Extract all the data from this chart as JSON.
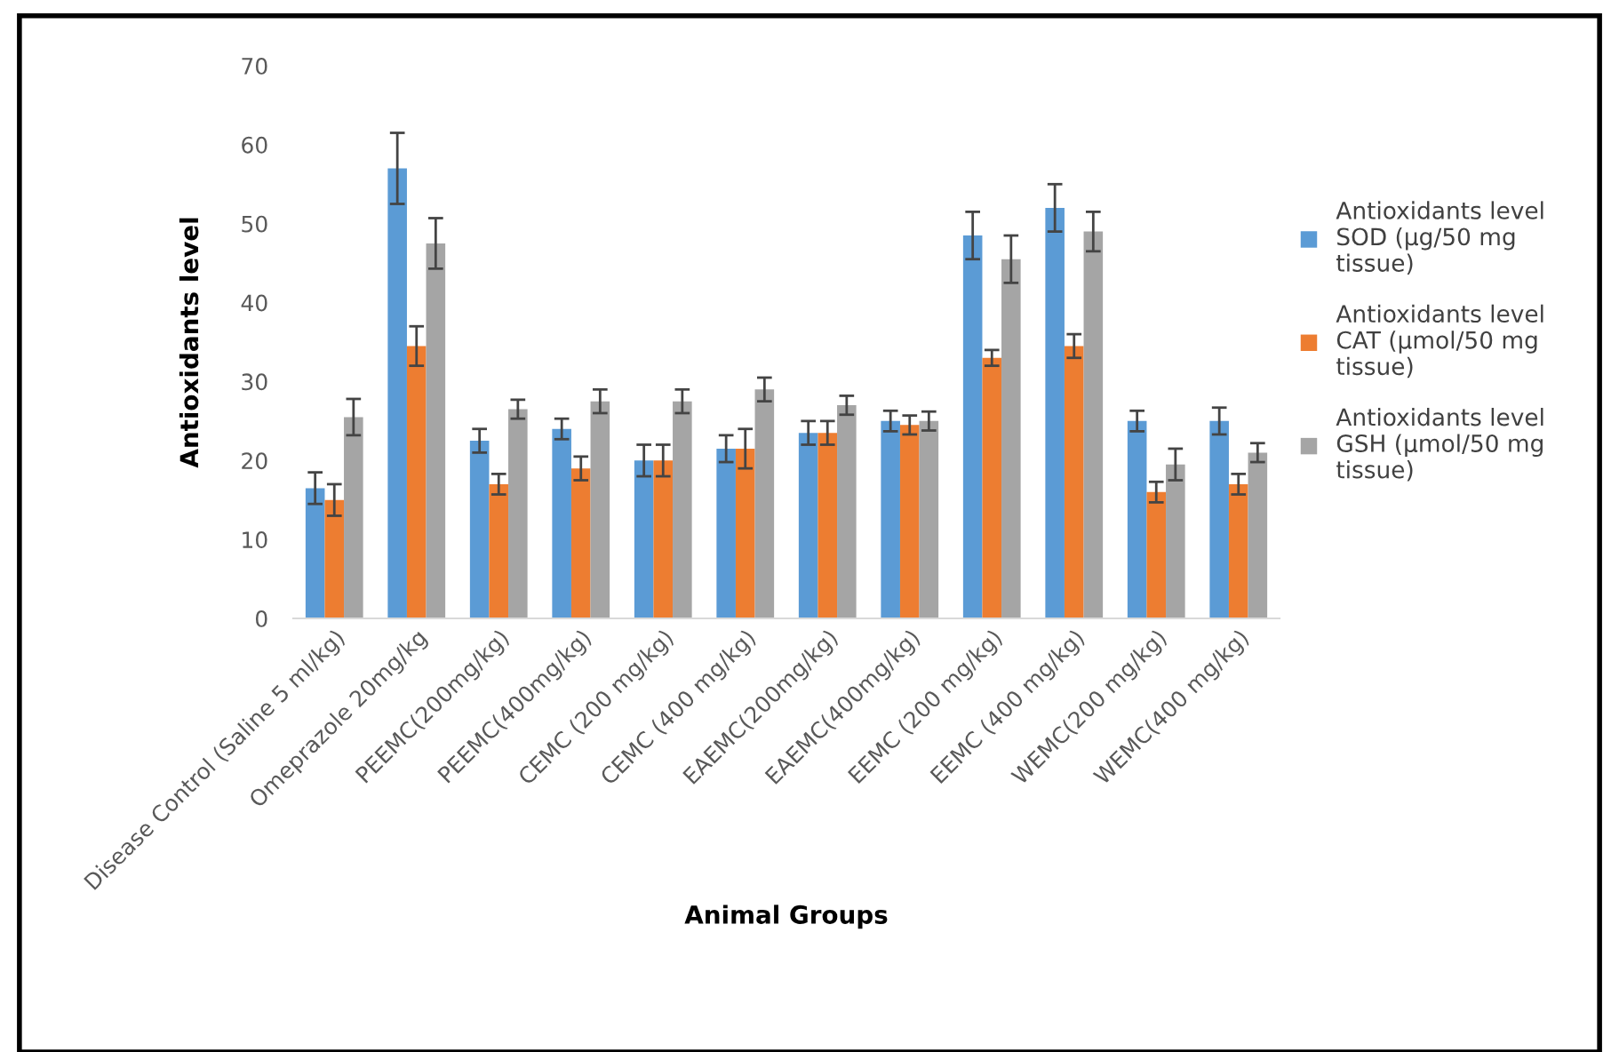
{
  "chart_data": {
    "type": "bar",
    "xlabel": "Animal Groups",
    "ylabel": "Antioxidants level",
    "categories": [
      "Disease Control (Saline 5 ml/kg)",
      "Omeprazole 20mg/kg",
      "PEEMC(200mg/kg)",
      "PEEMC(400mg/kg)",
      "CEMC (200 mg/kg)",
      "CEMC (400 mg/kg)",
      "EAEMC(200mg/kg)",
      "EAEMC(400mg/kg)",
      "EEMC (200 mg/kg)",
      "EEMC (400 mg/kg)",
      "WEMC(200 mg/kg)",
      "WEMC(400 mg/kg)"
    ],
    "series": [
      {
        "name": "Antioxidants level SOD (µg/50 mg tissue)",
        "color": "#5b9bd5",
        "values": [
          16.5,
          57,
          22.5,
          24,
          20,
          21.5,
          23.5,
          25,
          48.5,
          52,
          25,
          25
        ],
        "errors": [
          2,
          4.5,
          1.5,
          1.3,
          2,
          1.7,
          1.5,
          1.3,
          3,
          3,
          1.3,
          1.7
        ]
      },
      {
        "name": "Antioxidants level CAT (µmol/50 mg tissue)",
        "color": "#ed7d31",
        "values": [
          15,
          34.5,
          17,
          19,
          20,
          21.5,
          23.5,
          24.5,
          33,
          34.5,
          16,
          17
        ],
        "errors": [
          2,
          2.5,
          1.3,
          1.5,
          2,
          2.5,
          1.5,
          1.2,
          1,
          1.5,
          1.3,
          1.3
        ]
      },
      {
        "name": "Antioxidants level GSH (µmol/50 mg tissue)",
        "color": "#a5a5a5",
        "values": [
          25.5,
          47.5,
          26.5,
          27.5,
          27.5,
          29,
          27,
          25,
          45.5,
          49,
          19.5,
          21
        ],
        "errors": [
          2.3,
          3.2,
          1.2,
          1.5,
          1.5,
          1.5,
          1.2,
          1.2,
          3,
          2.5,
          2,
          1.2
        ]
      }
    ],
    "ylim": [
      0,
      70
    ],
    "yticks": [
      0,
      10,
      20,
      30,
      40,
      50,
      60,
      70
    ],
    "grid": false,
    "legend": "right"
  }
}
